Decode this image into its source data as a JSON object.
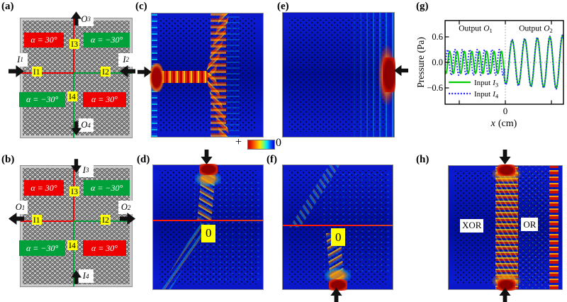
{
  "figure": {
    "panel_labels": {
      "a": "(a)",
      "b": "(b)",
      "c": "(c)",
      "d": "(d)",
      "e": "(e)",
      "f": "(f)",
      "g": "(g)",
      "h": "(h)"
    }
  },
  "colors": {
    "region_red": "#ee0000",
    "region_green": "#00a13b",
    "tag_yellow": "#ffff00",
    "field_blue": "#000d9e",
    "beam_red": "#cc1100",
    "arrow_black": "#111111"
  },
  "colorbar": {
    "positive_label": "+",
    "zero_label": "0"
  },
  "schematic_a": {
    "alpha_top_left": "α = 30°",
    "alpha_top_right": "α = −30°",
    "alpha_bottom_left": "α = −30°",
    "alpha_bottom_right": "α = 30°",
    "tag_top": "I3",
    "tag_left": "I1",
    "tag_right": "I2",
    "tag_bottom": "I4",
    "port_top": {
      "base": "O",
      "sub": "3"
    },
    "port_bottom": {
      "base": "O",
      "sub": "4"
    },
    "port_left": {
      "base": "I",
      "sub": "1"
    },
    "port_right": {
      "base": "I",
      "sub": "2"
    }
  },
  "schematic_b": {
    "alpha_top_left": "α = 30°",
    "alpha_top_right": "α = −30°",
    "alpha_bottom_left": "α = −30°",
    "alpha_bottom_right": "α = 30°",
    "tag_top": "I3",
    "tag_left": "I1",
    "tag_right": "I2",
    "tag_bottom": "I4",
    "port_top": {
      "base": "I",
      "sub": "3"
    },
    "port_bottom": {
      "base": "I",
      "sub": "4"
    },
    "port_left": {
      "base": "O",
      "sub": "1"
    },
    "port_right": {
      "base": "O",
      "sub": "2"
    }
  },
  "field_d": {
    "zero_label": "0"
  },
  "field_f": {
    "zero_label": "0"
  },
  "field_h": {
    "xor_label": "XOR",
    "or_label": "OR"
  },
  "chart_data": {
    "type": "line",
    "ylabel": "Pressure (Pa)",
    "xlabel_var": "x",
    "xlabel_rest": "(cm)",
    "xlim": [
      -4,
      4
    ],
    "ylim": [
      -0.98,
      0.98
    ],
    "yticks": [
      0.6,
      0.0,
      -0.6
    ],
    "ytick_labels": [
      "0.6",
      "0.0",
      "−0.6"
    ],
    "xticks": [
      -3,
      0,
      3
    ],
    "xtick_label": "0",
    "grid": false,
    "legend_position": "bottom-left",
    "regions": [
      {
        "text": "Output",
        "var": "O",
        "sub": "1"
      },
      {
        "text": "Output",
        "var": "O",
        "sub": "2"
      }
    ],
    "legend": [
      {
        "text": "Input",
        "var": "I",
        "sub": "3",
        "color": "#00cc00",
        "style": "solid"
      },
      {
        "text": "Input",
        "var": "I",
        "sub": "4",
        "color": "#2222ff",
        "style": "dotted"
      }
    ],
    "series": [
      {
        "name": "Input I3",
        "color": "#00cc00",
        "style": "solid",
        "segments": [
          {
            "x_start": -4,
            "x_end": 0,
            "amp_start": 0.26,
            "amp_end": 0.26,
            "period": 0.5,
            "phase": 4.0
          },
          {
            "x_start": 0,
            "x_end": 4,
            "amp_start": 0.5,
            "amp_end": 0.62,
            "period": 0.85,
            "phase": 3.9
          }
        ]
      },
      {
        "name": "Input I4",
        "color": "#2222ff",
        "style": "dotted",
        "segments": [
          {
            "x_start": -4,
            "x_end": 0,
            "amp_start": 0.3,
            "amp_end": 0.3,
            "period": 0.5,
            "phase": 5.8
          },
          {
            "x_start": 0,
            "x_end": 4,
            "amp_start": 0.52,
            "amp_end": 0.64,
            "period": 0.85,
            "phase": 3.95
          }
        ]
      }
    ]
  }
}
